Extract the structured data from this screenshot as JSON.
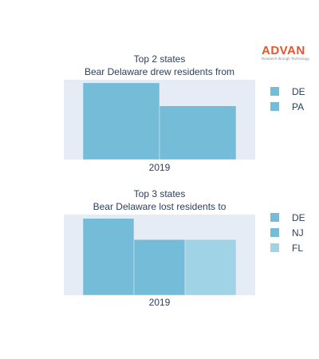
{
  "logo": {
    "word": "ADVAN",
    "tagline": "Research through Technology",
    "color": "#e4572e"
  },
  "chart_data": [
    {
      "type": "bar",
      "title_lines": [
        "Top 2 states",
        "Bear Delaware drew residents from"
      ],
      "categories": [
        "2019"
      ],
      "series": [
        {
          "name": "DE",
          "values": [
            5.0
          ],
          "color": "#74bcd7"
        },
        {
          "name": "PA",
          "values": [
            3.5
          ],
          "color": "#74bcd7"
        }
      ],
      "ylim": [
        0,
        5.2
      ],
      "legend_position": "right",
      "plot_background": "#e5ecf6",
      "grid": false
    },
    {
      "type": "bar",
      "title_lines": [
        "Top 3 states",
        "Bear Delaware lost residents to"
      ],
      "categories": [
        "2019"
      ],
      "series": [
        {
          "name": "DE",
          "values": [
            4.0
          ],
          "color": "#74bcd7"
        },
        {
          "name": "NJ",
          "values": [
            2.9
          ],
          "color": "#74bcd7"
        },
        {
          "name": "FL",
          "values": [
            2.9
          ],
          "color": "#a1d3e6"
        }
      ],
      "ylim": [
        0,
        4.2
      ],
      "legend_position": "right",
      "plot_background": "#e5ecf6",
      "grid": false
    }
  ]
}
